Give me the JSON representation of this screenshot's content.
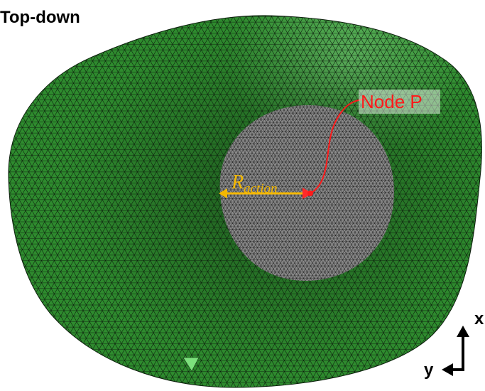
{
  "title": "Top-down",
  "node_label": "Node P",
  "radius_label": {
    "symbol": "R",
    "subscript": "action"
  },
  "axes": {
    "vertical": "x",
    "horizontal": "y"
  }
}
